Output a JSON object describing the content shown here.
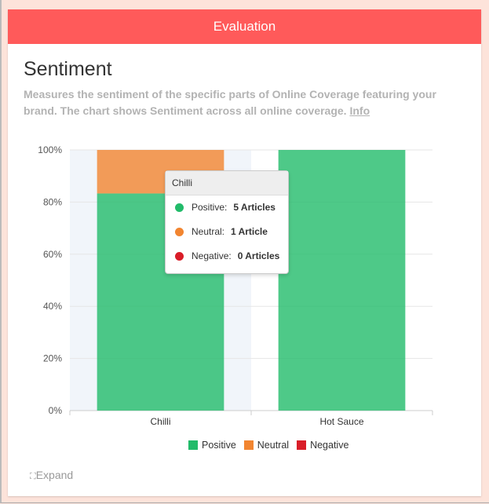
{
  "header": {
    "title": "Evaluation"
  },
  "section": {
    "title": "Sentiment",
    "description": "Measures the sentiment of the specific parts of Online Coverage featuring your brand. The chart shows Sentiment across all online coverage.",
    "info_link": "Info"
  },
  "chart_data": {
    "type": "bar",
    "stacked": true,
    "percent": true,
    "categories": [
      "Chilli",
      "Hot Sauce"
    ],
    "series": [
      {
        "name": "Positive",
        "color": "#22bb6a",
        "values": [
          83.3,
          100
        ]
      },
      {
        "name": "Neutral",
        "color": "#f28530",
        "values": [
          16.7,
          0
        ]
      },
      {
        "name": "Negative",
        "color": "#d91d28",
        "values": [
          0,
          0
        ]
      }
    ],
    "yticks": [
      "0%",
      "20%",
      "40%",
      "60%",
      "80%",
      "100%"
    ],
    "ylim": [
      0,
      100
    ],
    "grid": true,
    "legend": "bottom",
    "highlighted_category": "Chilli"
  },
  "tooltip": {
    "title": "Chilli",
    "rows": [
      {
        "label": "Positive:",
        "value": "5 Articles",
        "color": "#22bb6a"
      },
      {
        "label": "Neutral:",
        "value": "1 Article",
        "color": "#f28530"
      },
      {
        "label": "Negative:",
        "value": "0 Articles",
        "color": "#d91d28"
      }
    ]
  },
  "footer": {
    "expand_label": "Expand",
    "icon": "expand-icon"
  }
}
